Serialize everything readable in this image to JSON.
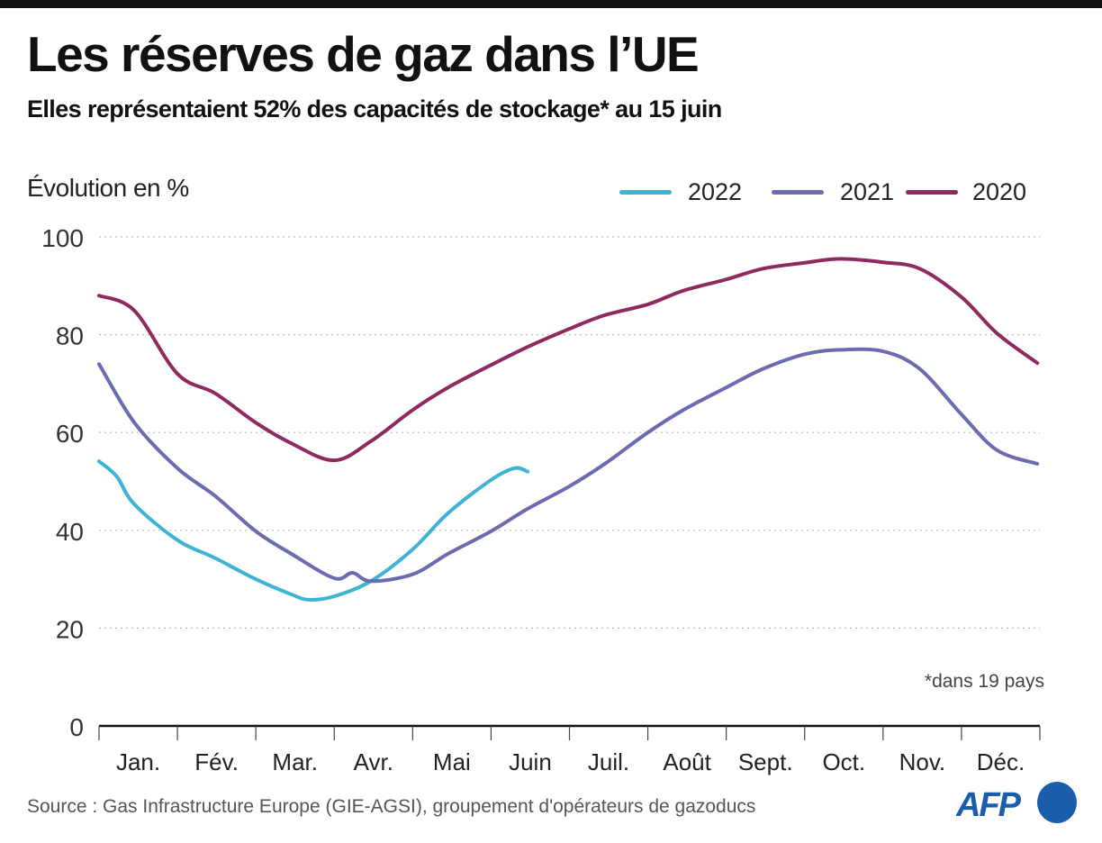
{
  "header": {
    "title": "Les réserves de gaz dans l’UE",
    "subtitle": "Elles représentaient 52% des capacités de stockage* au 15 juin"
  },
  "footnote": "*dans 19 pays",
  "source": "Source : Gas Infrastructure Europe (GIE-AGSI), groupement d'opérateurs de gazoducs",
  "logo": "AFP",
  "chart_data": {
    "type": "line",
    "ylabel": "Évolution en %",
    "xlabel": "",
    "ylim": [
      0,
      100
    ],
    "yticks": [
      0,
      20,
      40,
      60,
      80,
      100
    ],
    "grid": "horizontal dotted",
    "legend_placement": "top-right",
    "categories": [
      "Jan.",
      "Fév.",
      "Mar.",
      "Avr.",
      "Mai",
      "Juin",
      "Juil.",
      "Août",
      "Sept.",
      "Oct.",
      "Nov.",
      "Déc."
    ],
    "series": [
      {
        "name": "2022",
        "color": "#3fb3d3",
        "points": [
          [
            "01-01",
            54.1
          ],
          [
            "01-08",
            51
          ],
          [
            "01-15",
            45.3
          ],
          [
            "02-01",
            38
          ],
          [
            "02-15",
            34.3
          ],
          [
            "03-01",
            30
          ],
          [
            "03-15",
            26.9
          ],
          [
            "03-22",
            25.8
          ],
          [
            "04-01",
            26.5
          ],
          [
            "04-15",
            29.6
          ],
          [
            "05-01",
            36.1
          ],
          [
            "05-15",
            43.5
          ],
          [
            "06-01",
            50.3
          ],
          [
            "06-10",
            52.7
          ],
          [
            "06-15",
            52
          ]
        ]
      },
      {
        "name": "2021",
        "color": "#6b6bb0",
        "points": [
          [
            "01-01",
            74
          ],
          [
            "01-15",
            62
          ],
          [
            "02-01",
            52.7
          ],
          [
            "02-15",
            47
          ],
          [
            "03-01",
            39.8
          ],
          [
            "03-15",
            35.2
          ],
          [
            "04-01",
            30.2
          ],
          [
            "04-08",
            31.3
          ],
          [
            "04-15",
            29.6
          ],
          [
            "05-01",
            31
          ],
          [
            "05-15",
            35.2
          ],
          [
            "06-01",
            39.8
          ],
          [
            "06-15",
            44.4
          ],
          [
            "07-01",
            49
          ],
          [
            "07-15",
            53.6
          ],
          [
            "08-01",
            60
          ],
          [
            "08-15",
            64.6
          ],
          [
            "09-01",
            69.2
          ],
          [
            "09-15",
            73
          ],
          [
            "10-01",
            76
          ],
          [
            "10-15",
            76.9
          ],
          [
            "11-01",
            76.6
          ],
          [
            "11-15",
            73
          ],
          [
            "12-01",
            63.7
          ],
          [
            "12-15",
            56.4
          ],
          [
            "12-31",
            53.6
          ]
        ]
      },
      {
        "name": "2020",
        "color": "#8e2a5e",
        "points": [
          [
            "01-01",
            88
          ],
          [
            "01-15",
            84.9
          ],
          [
            "02-01",
            72
          ],
          [
            "02-15",
            68
          ],
          [
            "03-01",
            62
          ],
          [
            "03-15",
            57.8
          ],
          [
            "04-01",
            54.3
          ],
          [
            "04-15",
            58.2
          ],
          [
            "05-01",
            64.6
          ],
          [
            "05-15",
            69.2
          ],
          [
            "06-01",
            73.8
          ],
          [
            "06-15",
            77.5
          ],
          [
            "07-01",
            81.2
          ],
          [
            "07-15",
            84
          ],
          [
            "08-01",
            86.2
          ],
          [
            "08-15",
            89
          ],
          [
            "09-01",
            91.3
          ],
          [
            "09-15",
            93.5
          ],
          [
            "10-01",
            94.7
          ],
          [
            "10-15",
            95.5
          ],
          [
            "11-01",
            94.8
          ],
          [
            "11-15",
            93.5
          ],
          [
            "12-01",
            87.7
          ],
          [
            "12-15",
            80.3
          ],
          [
            "12-31",
            74.2
          ]
        ]
      }
    ]
  }
}
